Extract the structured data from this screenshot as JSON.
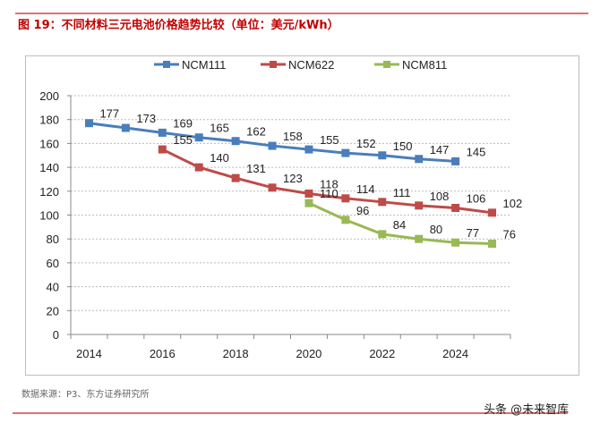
{
  "title": "图 19：不同材料三元电池价格趋势比较（单位：美元/kWh）",
  "source": "数据来源：P3、东方证券研究所",
  "watermark": "头条 @未来智库",
  "chart_data": {
    "type": "line",
    "title": "图 19：不同材料三元电池价格趋势比较（单位：美元/kWh）",
    "categories": [
      "2014",
      "2015",
      "2016",
      "2017",
      "2018",
      "2019",
      "2020",
      "2021",
      "2022",
      "2023",
      "2024",
      "2025"
    ],
    "tick_labels": [
      "2014",
      "2016",
      "2018",
      "2020",
      "2022",
      "2024"
    ],
    "ylim": [
      0,
      200
    ],
    "yticks": [
      0,
      20,
      40,
      60,
      80,
      100,
      120,
      140,
      160,
      180,
      200
    ],
    "grid": true,
    "legend": "top",
    "series": [
      {
        "name": "NCM111",
        "color": "#4a7ebb",
        "values": [
          177,
          173,
          169,
          165,
          162,
          158,
          155,
          152,
          150,
          147,
          145,
          null
        ]
      },
      {
        "name": "NCM622",
        "color": "#be4b48",
        "values": [
          null,
          null,
          155,
          140,
          131,
          123,
          118,
          114,
          111,
          108,
          106,
          102
        ]
      },
      {
        "name": "NCM811",
        "color": "#98b954",
        "values": [
          null,
          null,
          null,
          null,
          null,
          null,
          110,
          96,
          84,
          80,
          77,
          76
        ]
      }
    ]
  }
}
